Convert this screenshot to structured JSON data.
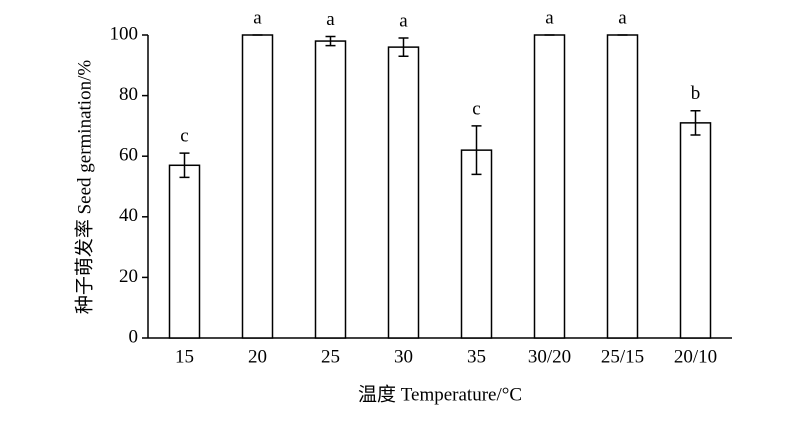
{
  "chart_data": {
    "type": "bar",
    "x_label": "温度 Temperature/°C",
    "y_label": "种子萌发率 Seed germination/%",
    "categories": [
      "15",
      "20",
      "25",
      "30",
      "35",
      "30/20",
      "25/15",
      "20/10"
    ],
    "values": [
      57,
      100,
      98,
      96,
      62,
      100,
      100,
      71
    ],
    "errors": [
      4,
      0,
      1.5,
      3,
      8,
      0,
      0,
      4
    ],
    "annotations": [
      "c",
      "a",
      "a",
      "a",
      "c",
      "a",
      "a",
      "b"
    ],
    "color": "#ffffff",
    "ylim": [
      0,
      100
    ],
    "yticks": [
      0,
      20,
      40,
      60,
      80,
      100
    ]
  }
}
